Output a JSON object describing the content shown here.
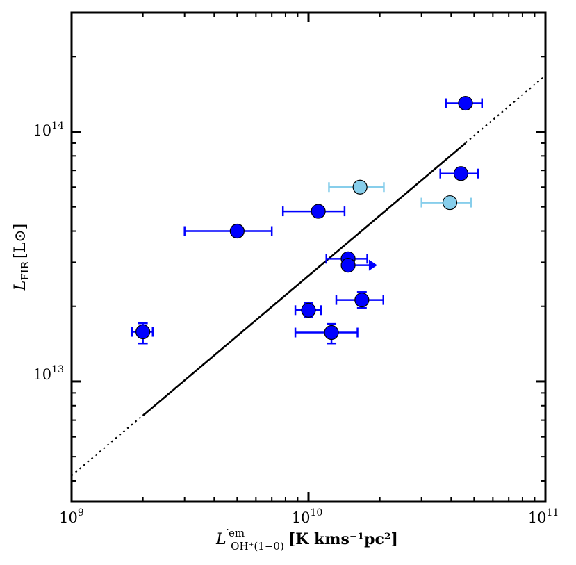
{
  "chart_data": {
    "type": "scatter",
    "title": "",
    "xscale": "log",
    "yscale": "log",
    "xlim": [
      1000000000.0,
      100000000000.0
    ],
    "ylim": [
      3300000000000.0,
      300000000000000.0
    ],
    "xlabel": {
      "main": "L",
      "sup": "′em",
      "sub": "OH⁺(1−0)",
      "unit": "[K kms⁻¹pc²]"
    },
    "ylabel": {
      "main": "L",
      "sub": "FIR",
      "unit": "[L⊙]"
    },
    "xticks": [
      {
        "value": 1000000000.0,
        "base": "10",
        "exp": "9"
      },
      {
        "value": 10000000000.0,
        "base": "10",
        "exp": "10"
      },
      {
        "value": 100000000000.0,
        "base": "10",
        "exp": "11"
      }
    ],
    "yticks": [
      {
        "value": 10000000000000.0,
        "base": "10",
        "exp": "13"
      },
      {
        "value": 100000000000000.0,
        "base": "10",
        "exp": "14"
      }
    ],
    "fit_line": {
      "solid": [
        [
          2000000000.0,
          7300000000000.0
        ],
        [
          46000000000.0,
          90000000000000.0
        ]
      ],
      "dotted": [
        [
          1000000000.0,
          4200000000000.0
        ],
        [
          100000000000.0,
          168000000000000.0
        ]
      ]
    },
    "series": [
      {
        "name": "dark",
        "color": "#0000ff",
        "marker_color": "#0000ff",
        "points": [
          {
            "x": 46000000000.0,
            "y": 130000000000000.0,
            "xerr": [
              38000000000.0,
              54000000000.0
            ],
            "yerr": null
          },
          {
            "x": 44000000000.0,
            "y": 68000000000000.0,
            "xerr": [
              36000000000.0,
              52000000000.0
            ],
            "yerr": null
          },
          {
            "x": 11000000000.0,
            "y": 48000000000000.0,
            "xerr": [
              7800000000.0,
              14200000000.0
            ],
            "yerr": null
          },
          {
            "x": 5000000000.0,
            "y": 40000000000000.0,
            "xerr": [
              3000000000.0,
              7000000000.0
            ],
            "yerr": null
          },
          {
            "x": 14700000000.0,
            "y": 31000000000000.0,
            "xerr": [
              11900000000.0,
              17700000000.0
            ],
            "yerr": null
          },
          {
            "x": 14700000000.0,
            "y": 29200000000000.0,
            "xerr": null,
            "yerr": null,
            "lower_limit_arrow": 19500000000.0
          },
          {
            "x": 16800000000.0,
            "y": 21200000000000.0,
            "xerr": [
              13100000000.0,
              20700000000.0
            ],
            "yerr": [
              19700000000000.0,
              22800000000000.0
            ]
          },
          {
            "x": 10000000000.0,
            "y": 19300000000000.0,
            "xerr": [
              8800000000.0,
              11300000000.0
            ],
            "yerr": [
              18100000000000.0,
              20600000000000.0
            ]
          },
          {
            "x": 12500000000.0,
            "y": 15700000000000.0,
            "xerr": [
              8800000000.0,
              16100000000.0
            ],
            "yerr": [
              14200000000000.0,
              17000000000000.0
            ]
          },
          {
            "x": 2000000000.0,
            "y": 15800000000000.0,
            "xerr": [
              1800000000.0,
              2200000000.0
            ],
            "yerr": [
              14200000000000.0,
              17100000000000.0
            ]
          }
        ]
      },
      {
        "name": "light",
        "color": "#87ceeb",
        "marker_color": "#87ceeb",
        "points": [
          {
            "x": 16500000000.0,
            "y": 60000000000000.0,
            "xerr": [
              12200000000.0,
              20800000000.0
            ],
            "yerr": null
          },
          {
            "x": 39500000000.0,
            "y": 52000000000000.0,
            "xerr": [
              30000000000.0,
              48500000000.0
            ],
            "yerr": null
          }
        ]
      }
    ]
  }
}
